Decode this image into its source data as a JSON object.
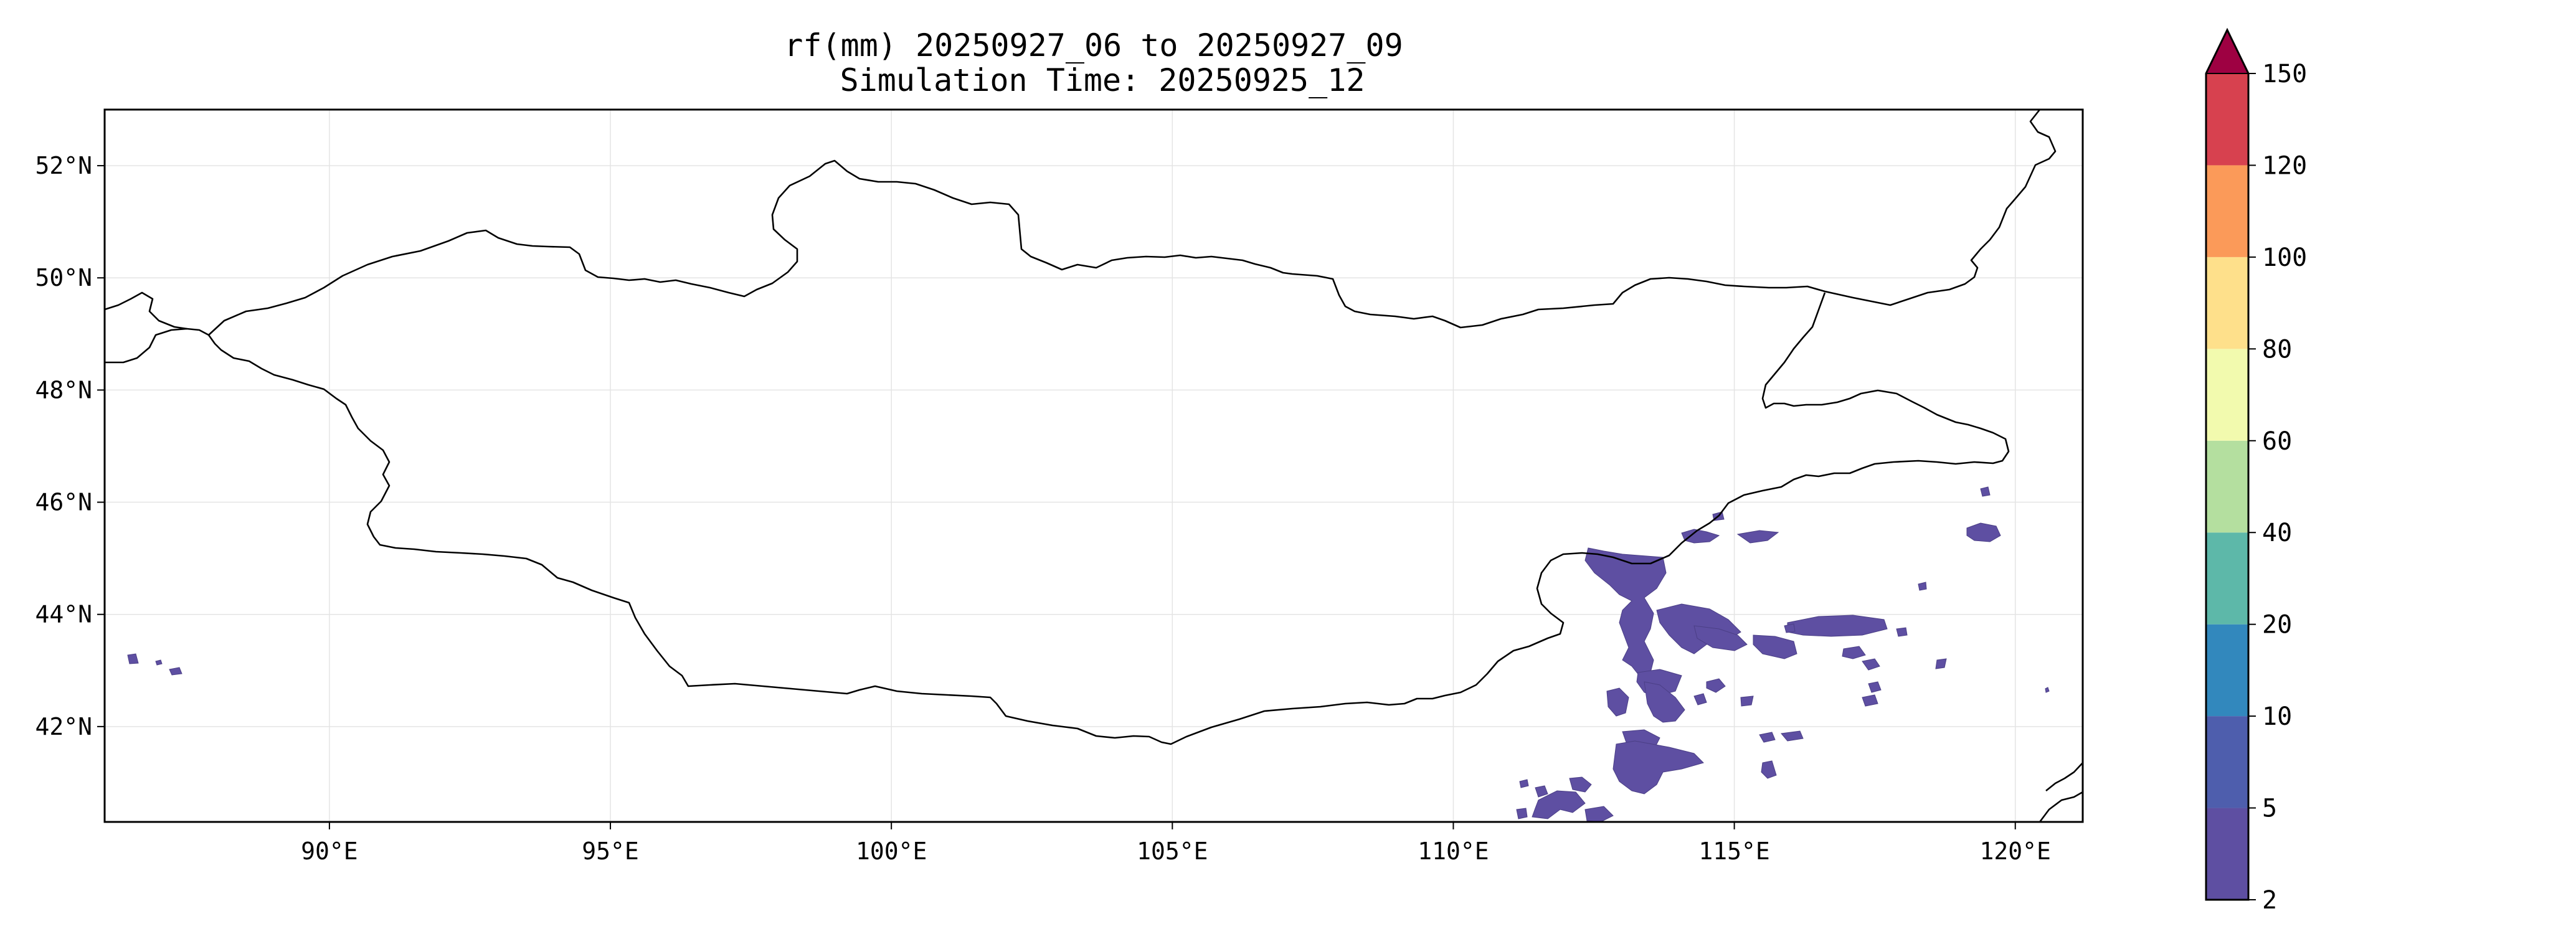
{
  "title": {
    "line1": "rf(mm) 20250927_06 to 20250927_09",
    "line2": "Simulation Time: 20250925_12"
  },
  "map": {
    "lon_range": [
      86,
      121.2
    ],
    "lat_range": [
      40.3,
      53
    ],
    "lon_ticks": [
      {
        "value": 90,
        "label": "90°E"
      },
      {
        "value": 95,
        "label": "95°E"
      },
      {
        "value": 100,
        "label": "100°E"
      },
      {
        "value": 105,
        "label": "105°E"
      },
      {
        "value": 110,
        "label": "110°E"
      },
      {
        "value": 115,
        "label": "115°E"
      },
      {
        "value": 120,
        "label": "120°E"
      }
    ],
    "lat_ticks": [
      {
        "value": 52,
        "label": "52°N"
      },
      {
        "value": 50,
        "label": "50°N"
      },
      {
        "value": 48,
        "label": "48°N"
      },
      {
        "value": 46,
        "label": "46°N"
      },
      {
        "value": 44,
        "label": "44°N"
      },
      {
        "value": 42,
        "label": "42°N"
      }
    ],
    "grid": true,
    "boundary_color": "#000000"
  },
  "colorbar": {
    "position": "right",
    "extend": "max",
    "extend_color": "#9e0142",
    "levels": [
      {
        "label": "2",
        "color": "#5e4fa2"
      },
      {
        "label": "5",
        "color": "#4e5ead"
      },
      {
        "label": "10",
        "color": "#3288bd"
      },
      {
        "label": "20",
        "color": "#5db8a9"
      },
      {
        "label": "40",
        "color": "#b4df9f"
      },
      {
        "label": "60",
        "color": "#f2faae"
      },
      {
        "label": "80",
        "color": "#fee08b"
      },
      {
        "label": "100",
        "color": "#fb9a59"
      },
      {
        "label": "120",
        "color": "#d7414f"
      }
    ],
    "top_label": "150"
  },
  "rainfall": {
    "color": "#5e4fa2"
  }
}
